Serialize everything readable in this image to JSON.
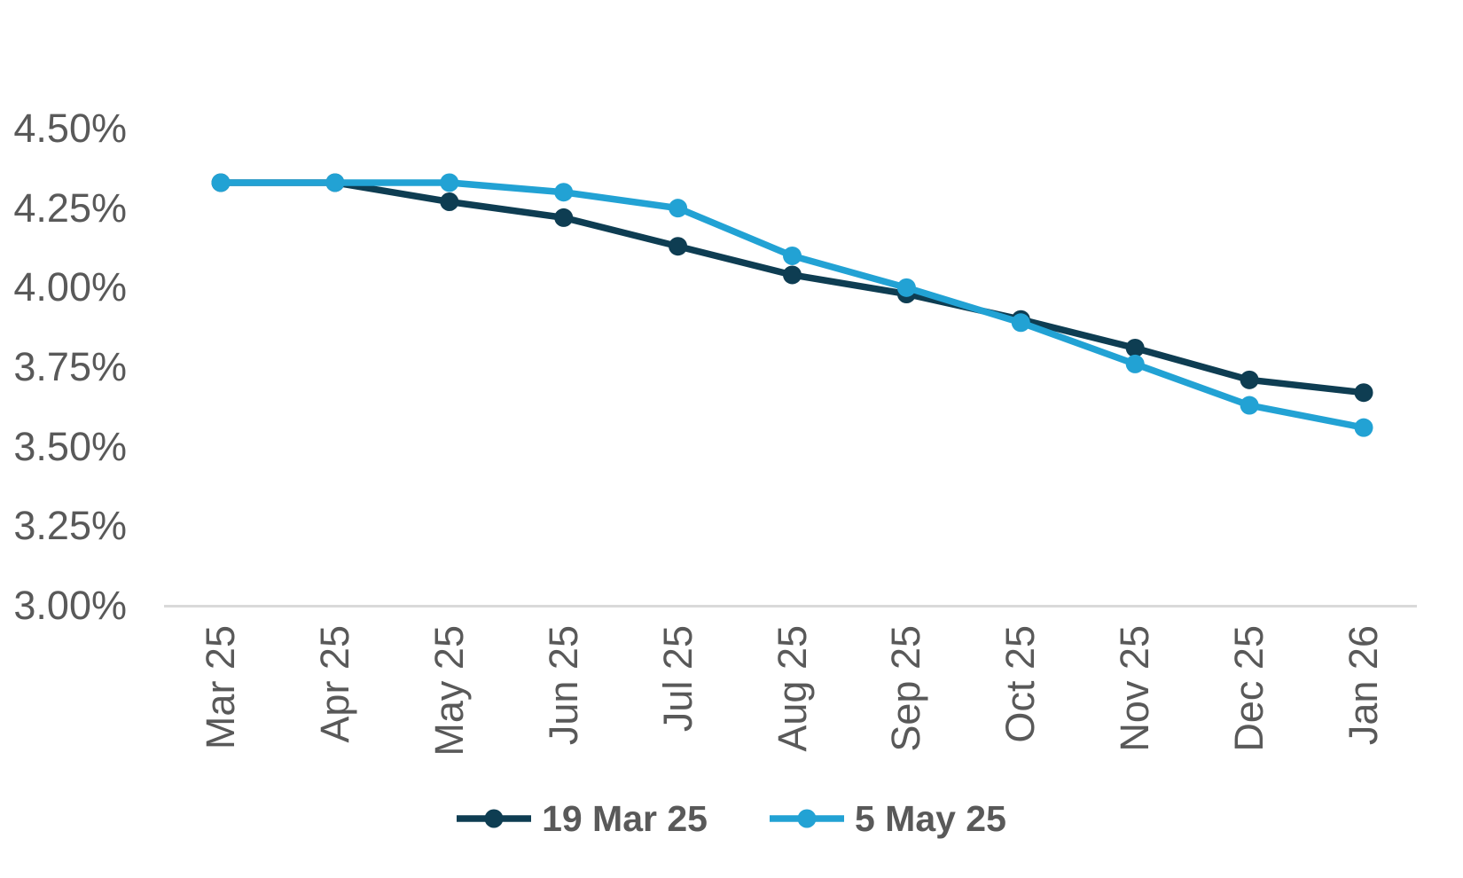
{
  "background_color": "#ffffff",
  "axis_text_color": "#595959",
  "gridline_color": "#d9d9d9",
  "chart_data": {
    "type": "line",
    "title": "",
    "xlabel": "",
    "ylabel": "",
    "categories": [
      "Mar 25",
      "Apr 25",
      "May 25",
      "Jun 25",
      "Jul 25",
      "Aug 25",
      "Sep 25",
      "Oct 25",
      "Nov 25",
      "Dec 25",
      "Jan 26"
    ],
    "series": [
      {
        "name": "19 Mar 25",
        "color": "#0e3d52",
        "values": [
          4.33,
          4.33,
          4.27,
          4.22,
          4.13,
          4.04,
          3.98,
          3.9,
          3.81,
          3.71,
          3.67
        ]
      },
      {
        "name": "5 May 25",
        "color": "#22a2d4",
        "values": [
          4.33,
          4.33,
          4.33,
          4.3,
          4.25,
          4.1,
          4.0,
          3.89,
          3.76,
          3.63,
          3.56
        ]
      }
    ],
    "ylim": [
      3.0,
      4.5
    ],
    "yticks": [
      {
        "value": 4.5,
        "label": "4.50%"
      },
      {
        "value": 4.25,
        "label": "4.25%"
      },
      {
        "value": 4.0,
        "label": "4.00%"
      },
      {
        "value": 3.75,
        "label": "3.75%"
      },
      {
        "value": 3.5,
        "label": "3.50%"
      },
      {
        "value": 3.25,
        "label": "3.25%"
      },
      {
        "value": 3.0,
        "label": "3.00%"
      }
    ],
    "grid": "baseline-only",
    "legend_position": "bottom",
    "x_tick_rotation": -90,
    "marker": "circle"
  }
}
